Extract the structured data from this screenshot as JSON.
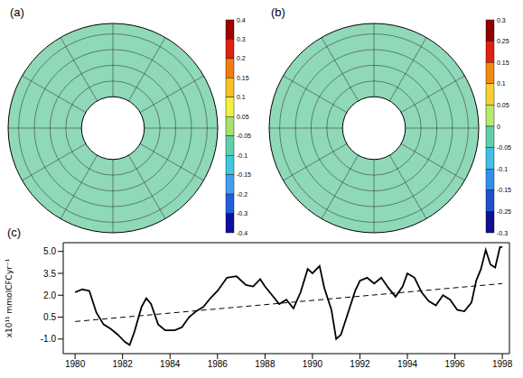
{
  "chart_data": [
    {
      "type": "map",
      "title": "(a)",
      "colorbar": {
        "ticks": [
          0.4,
          0.3,
          0.2,
          0.15,
          0.1,
          0.05,
          -0.05,
          -0.1,
          -0.15,
          -0.2,
          -0.3,
          -0.4
        ],
        "colors": [
          "#a00000",
          "#e02010",
          "#f57a10",
          "#f8c020",
          "#f0f040",
          "#a8e070",
          "#60d0a8",
          "#40c8e0",
          "#40a0f0",
          "#2060e0",
          "#1010a0"
        ]
      }
    },
    {
      "type": "map",
      "title": "(b)",
      "colorbar": {
        "ticks": [
          0.3,
          0.25,
          0.15,
          0.1,
          0.05,
          0,
          -0.05,
          -0.1,
          -0.15,
          -0.25,
          -0.3
        ],
        "colors": [
          "#900000",
          "#e02010",
          "#f58a10",
          "#f8d030",
          "#b8e870",
          "#60d0a8",
          "#40c0e8",
          "#3090f0",
          "#2050d0",
          "#101090"
        ]
      }
    },
    {
      "type": "line",
      "title": "(c)",
      "ylabel": "x10¹¹ mmolCFCyr⁻¹",
      "xlim": [
        1979.5,
        1998.3
      ],
      "xticks": [
        1980,
        1982,
        1984,
        1986,
        1988,
        1990,
        1992,
        1994,
        1996,
        1998
      ],
      "ylim": [
        -2,
        5.6
      ],
      "yticks": [
        {
          "value": -1,
          "label": "-1.0"
        },
        0.5,
        {
          "value": 2,
          "label": "2.0"
        },
        3.5,
        {
          "value": 5,
          "label": "5.0"
        }
      ],
      "series": [
        {
          "x": [
            1980.0,
            1980.3,
            1980.6,
            1980.9,
            1981.2,
            1981.5,
            1981.8,
            1982.1,
            1982.3,
            1982.5,
            1982.8,
            1983.0,
            1983.2,
            1983.5,
            1983.8,
            1984.2,
            1984.5,
            1984.8,
            1985.1,
            1985.4,
            1985.7,
            1986.0,
            1986.4,
            1986.8,
            1987.2,
            1987.5,
            1987.8,
            1988.0,
            1988.3,
            1988.6,
            1988.9,
            1989.2,
            1989.5,
            1989.8,
            1990.0,
            1990.3,
            1990.5,
            1990.8,
            1991.0,
            1991.2,
            1991.5,
            1991.8,
            1992.0,
            1992.3,
            1992.6,
            1992.9,
            1993.2,
            1993.5,
            1993.8,
            1994.0,
            1994.3,
            1994.6,
            1994.9,
            1995.2,
            1995.5,
            1995.8,
            1996.1,
            1996.4,
            1996.7,
            1996.9,
            1997.1,
            1997.3,
            1997.5,
            1997.7,
            1997.9,
            1998.0
          ],
          "values": [
            2.2,
            2.4,
            2.3,
            0.8,
            0.0,
            -0.3,
            -0.7,
            -1.2,
            -1.4,
            -0.5,
            1.2,
            1.8,
            1.4,
            0.0,
            -0.4,
            -0.4,
            -0.2,
            0.5,
            0.9,
            1.2,
            1.8,
            2.3,
            3.2,
            3.3,
            2.7,
            2.6,
            3.1,
            2.6,
            2.0,
            1.4,
            1.7,
            1.1,
            2.2,
            3.8,
            3.5,
            4.0,
            2.5,
            1.0,
            -1.0,
            -0.7,
            0.8,
            2.3,
            3.0,
            3.2,
            2.8,
            3.2,
            2.5,
            1.9,
            2.6,
            3.5,
            3.2,
            2.2,
            1.6,
            1.3,
            2.0,
            1.7,
            1.0,
            0.9,
            1.5,
            3.0,
            3.8,
            5.1,
            4.1,
            3.9,
            5.3,
            5.3
          ],
          "color": "#000000",
          "line_style": "solid"
        },
        {
          "x": [
            1980,
            1998
          ],
          "values": [
            0.2,
            2.8
          ],
          "color": "#000000",
          "line_style": "dashed"
        }
      ]
    }
  ]
}
